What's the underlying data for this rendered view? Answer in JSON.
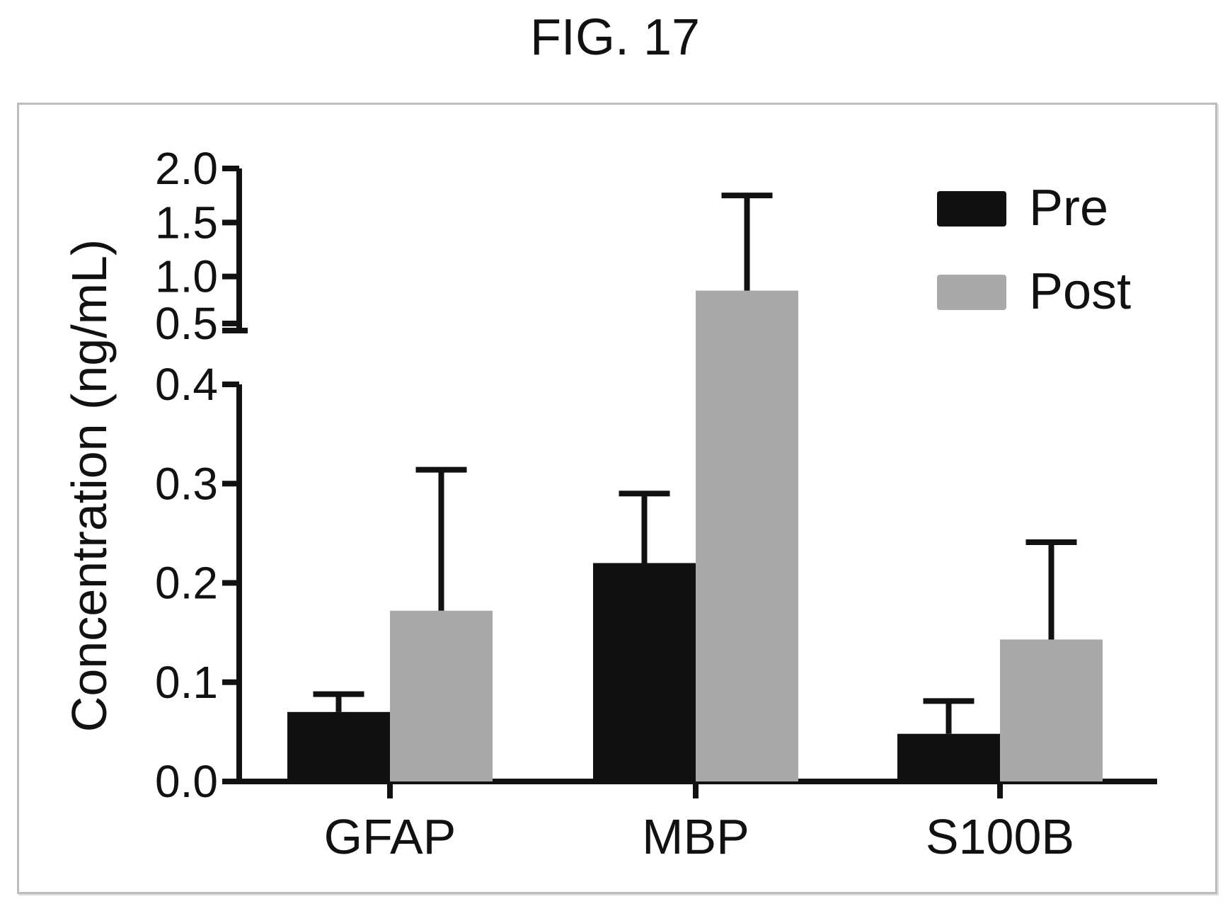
{
  "figure": {
    "title": "FIG. 17"
  },
  "chart_data": {
    "type": "bar",
    "title": "",
    "xlabel": "",
    "ylabel": "Concentration (ng/mL)",
    "categories": [
      "GFAP",
      "MBP",
      "S100B"
    ],
    "series": [
      {
        "name": "Pre",
        "color": "#111111",
        "values": [
          0.07,
          0.22,
          0.048
        ],
        "error": [
          0.018,
          0.07,
          0.033
        ]
      },
      {
        "name": "Post",
        "color": "#a9a9a9",
        "values": [
          0.172,
          0.87,
          0.143
        ],
        "error": [
          0.142,
          0.88,
          0.098
        ]
      }
    ],
    "broken_axis": true,
    "ylim_lower": [
      0,
      0.4
    ],
    "ylim_upper": [
      0.5,
      2.0
    ],
    "yticks_lower": [
      "0.0",
      "0.1",
      "0.2",
      "0.3",
      "0.4"
    ],
    "yticks_upper": [
      "0.5",
      "1.0",
      "1.5",
      "2.0"
    ],
    "grid": false,
    "legend_position": "top-right"
  }
}
